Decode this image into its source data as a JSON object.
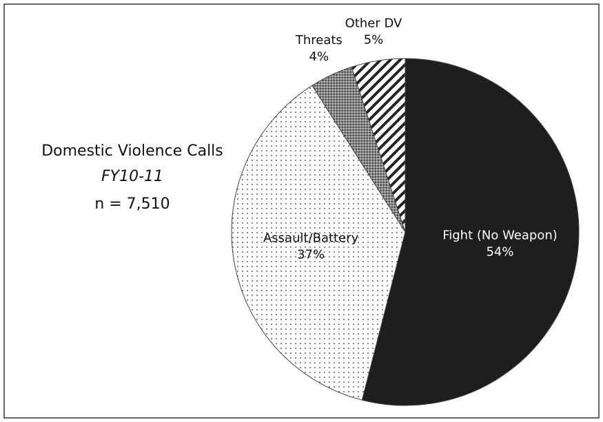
{
  "chart_data": {
    "type": "pie",
    "title": "Domestic Violence Calls",
    "subtitle": "FY10-11",
    "annotation": "n = 7,510",
    "categories": [
      "Fight (No Weapon)",
      "Assault/Battery",
      "Threats",
      "Other DV"
    ],
    "values": [
      54,
      37,
      4,
      5
    ],
    "value_labels": [
      "54%",
      "37%",
      "4%",
      "5%"
    ],
    "colors": [
      "#1e1e1e",
      "#ffffff",
      "#6e6e6e",
      "#ffffff"
    ],
    "patterns": [
      "solid",
      "dots",
      "stipple",
      "stripes"
    ]
  }
}
